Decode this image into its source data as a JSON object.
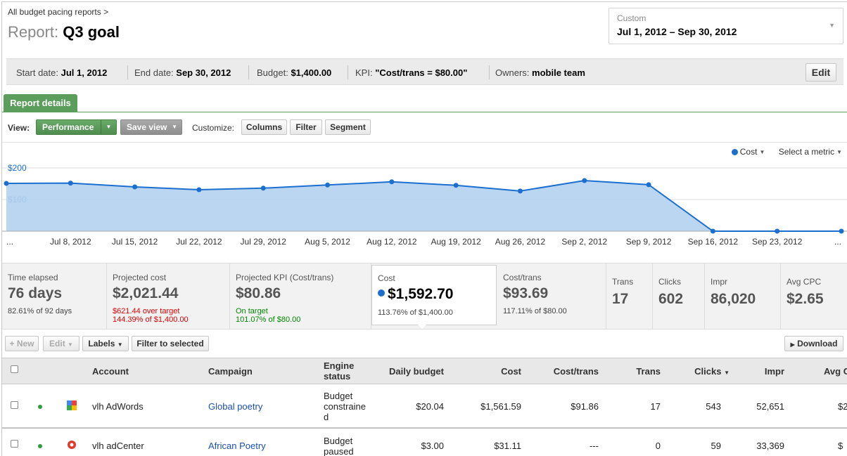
{
  "breadcrumb": "All budget pacing reports >",
  "title": {
    "label": "Report:",
    "name": "Q3 goal"
  },
  "date_range": {
    "label": "Custom",
    "value": "Jul 1, 2012 – Sep 30, 2012"
  },
  "info": {
    "start_label": "Start date:",
    "start_value": "Jul 1, 2012",
    "end_label": "End date:",
    "end_value": "Sep 30, 2012",
    "budget_label": "Budget:",
    "budget_value": "$1,400.00",
    "kpi_label": "KPI:",
    "kpi_value": "\"Cost/trans = $80.00\"",
    "owners_label": "Owners:",
    "owners_value": "mobile team",
    "edit_label": "Edit"
  },
  "tab": "Report details",
  "view": {
    "label": "View:",
    "performance": "Performance",
    "save_view": "Save view",
    "customize": "Customize:",
    "columns": "Columns",
    "filter": "Filter",
    "segment": "Segment"
  },
  "chart_legend": {
    "series": "Cost",
    "select_metric": "Select a metric"
  },
  "chart_data": {
    "type": "area",
    "title": "",
    "xlabel": "",
    "ylabel": "",
    "yticks": [
      "$200",
      "$100"
    ],
    "ylim": [
      0,
      200
    ],
    "x_tick_labels": [
      "...",
      "Jul 8, 2012",
      "Jul 15, 2012",
      "Jul 22, 2012",
      "Jul 29, 2012",
      "Aug 5, 2012",
      "Aug 12, 2012",
      "Aug 19, 2012",
      "Aug 26, 2012",
      "Sep 2, 2012",
      "Sep 9, 2012",
      "Sep 16, 2012",
      "Sep 23, 2012",
      "..."
    ],
    "x": [
      "Jul 1, 2012",
      "Jul 8, 2012",
      "Jul 15, 2012",
      "Jul 22, 2012",
      "Jul 29, 2012",
      "Aug 5, 2012",
      "Aug 12, 2012",
      "Aug 19, 2012",
      "Aug 26, 2012",
      "Sep 2, 2012",
      "Sep 9, 2012",
      "Sep 16, 2012",
      "Sep 23, 2012",
      "Sep 30, 2012"
    ],
    "series": [
      {
        "name": "Cost",
        "values": [
          151,
          152,
          140,
          131,
          136,
          146,
          156,
          145,
          127,
          160,
          147,
          0,
          0,
          0
        ]
      }
    ],
    "grid": true,
    "legend": "top-right"
  },
  "stats": [
    {
      "key": "Time elapsed",
      "value": "76 days",
      "sub1": "82.61% of 92 days",
      "sub2": ""
    },
    {
      "key": "Projected cost",
      "value": "$2,021.44",
      "sub1": "$621.44 over target",
      "sub2": "144.39% of $1,400.00"
    },
    {
      "key": "Projected KPI (Cost/trans)",
      "value": "$80.86",
      "sub1": "On target",
      "sub2": "101.07% of $80.00"
    },
    {
      "key": "Cost",
      "value": "$1,592.70",
      "sub1": "113.76% of $1,400.00",
      "sub2": ""
    },
    {
      "key": "Cost/trans",
      "value": "$93.69",
      "sub1": "117.11% of $80.00",
      "sub2": ""
    },
    {
      "key": "Trans",
      "value": "17"
    },
    {
      "key": "Clicks",
      "value": "602"
    },
    {
      "key": "Impr",
      "value": "86,020"
    },
    {
      "key": "Avg CPC",
      "value": "$2.65"
    }
  ],
  "colors": {
    "accent_green": "#5b9d5b",
    "series_blue": "#1c6fcf",
    "over_target": "#dd0000",
    "on_target": "#008800",
    "link": "#1a4fb3"
  },
  "toolbar": {
    "new": "+ New",
    "edit": "Edit",
    "labels": "Labels",
    "filter_selected": "Filter to selected",
    "download": "Download"
  },
  "table": {
    "headers": {
      "account": "Account",
      "campaign": "Campaign",
      "engine_status_1": "Engine",
      "engine_status_2": "status",
      "daily_budget": "Daily budget",
      "cost": "Cost",
      "cost_trans": "Cost/trans",
      "trans": "Trans",
      "clicks": "Clicks",
      "impr": "Impr",
      "avg": "Avg C"
    },
    "rows": [
      {
        "account": "vlh AdWords",
        "account_icon": "google-adwords-icon",
        "campaign": "Global poetry",
        "status_1": "Budget",
        "status_2": "constraine",
        "status_3": "d",
        "daily_budget": "$20.04",
        "cost": "$1,561.59",
        "cost_trans": "$91.86",
        "trans": "17",
        "clicks": "543",
        "impr": "52,651",
        "avg": "$2"
      },
      {
        "account": "vlh adCenter",
        "account_icon": "adcenter-icon",
        "campaign": "African Poetry",
        "status_1": "Budget",
        "status_2": "paused",
        "status_3": "",
        "daily_budget": "$3.00",
        "cost": "$31.11",
        "cost_trans": "---",
        "trans": "0",
        "clicks": "59",
        "impr": "33,369",
        "avg": "$"
      }
    ]
  }
}
